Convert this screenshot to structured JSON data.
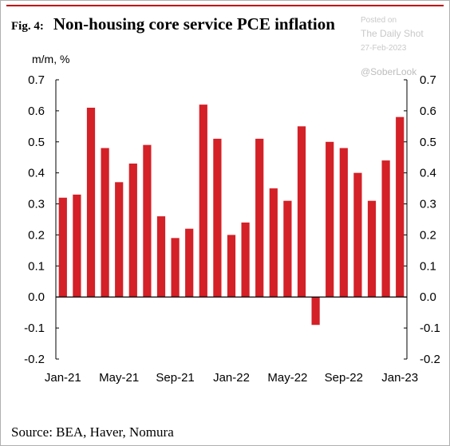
{
  "header": {
    "fig_label": "Fig. 4:",
    "title": "Non-housing core service PCE inflation"
  },
  "watermark": {
    "line1": "Posted on",
    "line2": "The Daily Shot",
    "line3": "27-Feb-2023",
    "handle": "@SoberLook"
  },
  "unit_label": "m/m, %",
  "source": "Source: BEA, Haver, Nomura",
  "chart_data": {
    "type": "bar",
    "title": "Non-housing core service PCE inflation",
    "ylabel": "m/m, %",
    "ylim": [
      -0.2,
      0.7
    ],
    "ytick_step": 0.1,
    "yticks": [
      "0.7",
      "0.6",
      "0.5",
      "0.4",
      "0.3",
      "0.2",
      "0.1",
      "0.0",
      "-0.1",
      "-0.2"
    ],
    "dual_axis": true,
    "grid": false,
    "bar_color": "#d42027",
    "categories": [
      "Jan-21",
      "Feb-21",
      "Mar-21",
      "Apr-21",
      "May-21",
      "Jun-21",
      "Jul-21",
      "Aug-21",
      "Sep-21",
      "Oct-21",
      "Nov-21",
      "Dec-21",
      "Jan-22",
      "Feb-22",
      "Mar-22",
      "Apr-22",
      "May-22",
      "Jun-22",
      "Jul-22",
      "Aug-22",
      "Sep-22",
      "Oct-22",
      "Nov-22",
      "Dec-22",
      "Jan-23"
    ],
    "xtick_labels": [
      "Jan-21",
      "May-21",
      "Sep-21",
      "Jan-22",
      "May-22",
      "Sep-22",
      "Jan-23"
    ],
    "xtick_indices": [
      0,
      4,
      8,
      12,
      16,
      20,
      24
    ],
    "values": [
      0.32,
      0.33,
      0.61,
      0.48,
      0.37,
      0.43,
      0.49,
      0.26,
      0.19,
      0.22,
      0.62,
      0.51,
      0.2,
      0.24,
      0.51,
      0.35,
      0.31,
      0.55,
      -0.09,
      0.5,
      0.48,
      0.4,
      0.31,
      0.44,
      0.58
    ]
  }
}
